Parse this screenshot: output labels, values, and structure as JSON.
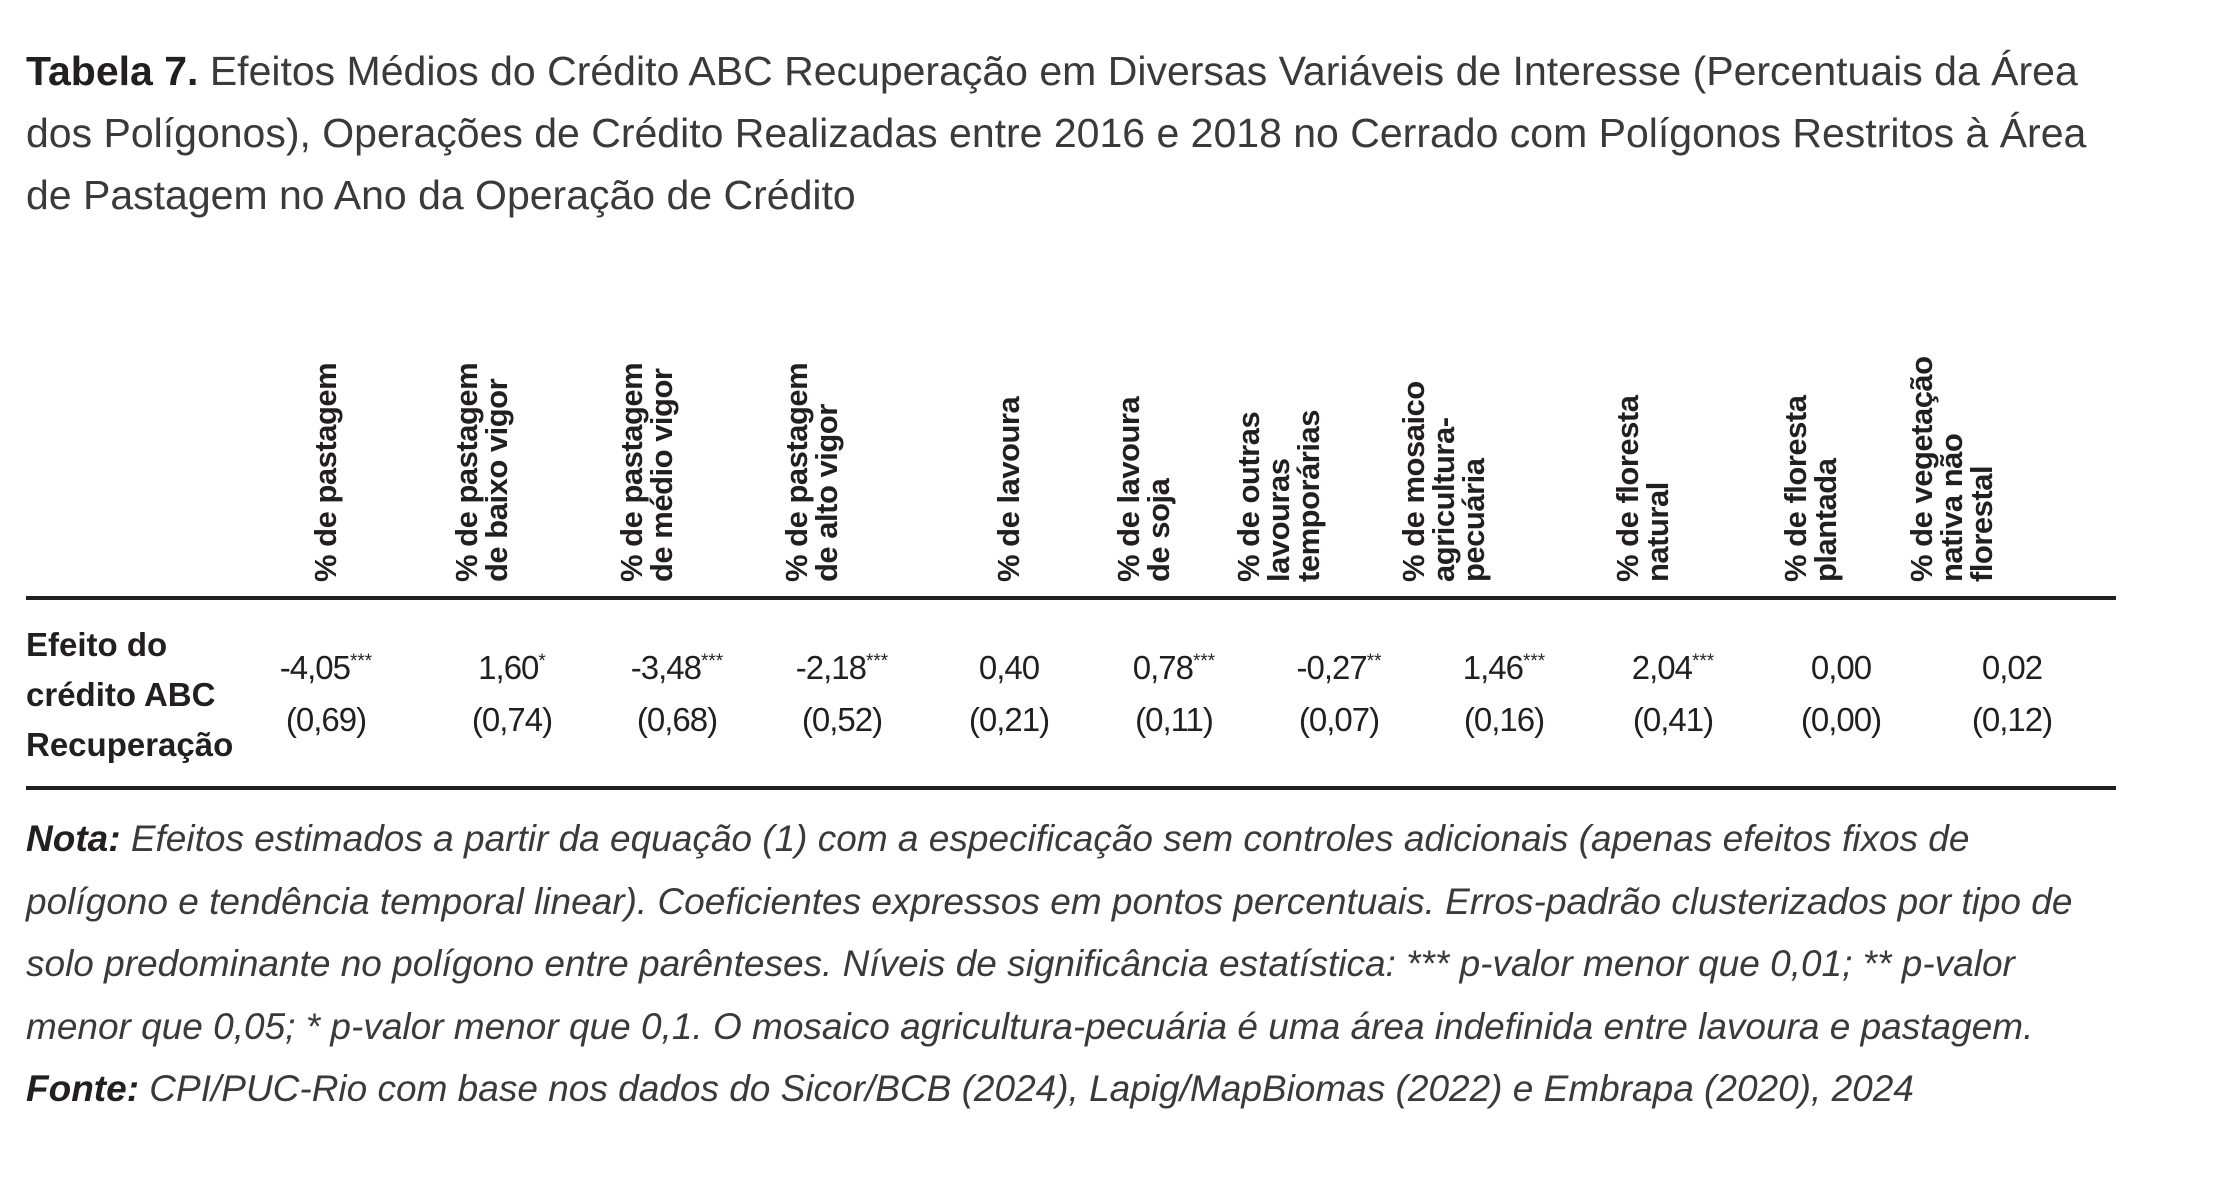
{
  "caption": {
    "label": "Tabela 7.",
    "text": " Efeitos Médios do Crédito ABC Recuperação em Diversas Variáveis de Interesse (Percentuais da Área dos Polígonos), Operações de Crédito Realizadas entre 2016 e 2018 no Cerrado com Polígonos Restritos à Área de Pastagem no Ano da Operação de Crédito"
  },
  "table": {
    "columns": [
      "% de pastagem",
      "% de pastagem\nde baixo vigor",
      "% de pastagem\nde médio vigor",
      "% de pastagem\nde alto vigor",
      "% de lavoura",
      "% de lavoura\nde soja",
      "% de outras\nlavouras\ntemporárias",
      "% de mosaico\nagricultura-\npecuária",
      "% de floresta\nnatural",
      "% de floresta\nplantada",
      "% de vegetação\nnativa não\nflorestal"
    ],
    "row_label": "Efeito do\ncrédito ABC\nRecuperação",
    "cells": [
      {
        "coef": "-4,05",
        "stars": "***",
        "se": "(0,69)"
      },
      {
        "coef": "1,60",
        "stars": "*",
        "se": "(0,74)"
      },
      {
        "coef": "-3,48",
        "stars": "***",
        "se": "(0,68)"
      },
      {
        "coef": "-2,18",
        "stars": "***",
        "se": "(0,52)"
      },
      {
        "coef": "0,40",
        "stars": "",
        "se": "(0,21)"
      },
      {
        "coef": "0,78",
        "stars": "***",
        "se": "(0,11)"
      },
      {
        "coef": "-0,27",
        "stars": "**",
        "se": "(0,07)"
      },
      {
        "coef": "1,46",
        "stars": "***",
        "se": "(0,16)"
      },
      {
        "coef": "2,04",
        "stars": "***",
        "se": "(0,41)"
      },
      {
        "coef": "0,00",
        "stars": "",
        "se": "(0,00)"
      },
      {
        "coef": "0,02",
        "stars": "",
        "se": "(0,12)"
      }
    ]
  },
  "notes": {
    "nota_label": "Nota:",
    "nota_text": " Efeitos estimados a partir da equação (1) com a especificação sem controles adicionais (apenas efeitos fixos de polígono e tendência temporal linear). Coeficientes expressos em pontos percentuais. Erros-padrão clusterizados por tipo de solo predominante no polígono entre parênteses. Níveis de significância estatística: *** p-valor menor que 0,01; ** p-valor menor que 0,05; * p-valor menor que 0,1. O mosaico agricultura-pecuária é uma área indefinida entre lavoura e pastagem.",
    "fonte_label": "Fonte:",
    "fonte_text": " CPI/PUC-Rio com base nos dados do Sicor/BCB (2024), Lapig/MapBiomas (2022) e Embrapa (2020), 2024"
  }
}
